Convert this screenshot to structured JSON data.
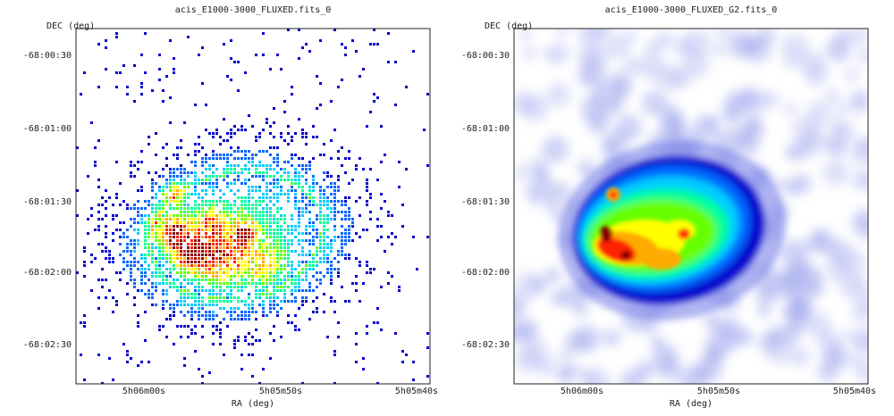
{
  "panels": [
    {
      "title": "acis_E1000-3000_FLUXED.fits_0",
      "y_axis_label": "DEC (deg)",
      "x_axis_label": "RA (deg)",
      "y_ticks": [
        "-68:00:30",
        "-68:01:00",
        "-68:01:30",
        "-68:02:00",
        "-68:02:30"
      ],
      "x_ticks": [
        "5h06m00s",
        "5h05m50s",
        "5h05m40s"
      ],
      "render_style": "binned-counts"
    },
    {
      "title": "acis_E1000-3000_FLUXED_G2.fits_0",
      "y_axis_label": "DEC (deg)",
      "x_axis_label": "RA (deg)",
      "y_ticks": [
        "-68:00:30",
        "-68:01:00",
        "-68:01:30",
        "-68:02:00",
        "-68:02:30"
      ],
      "x_ticks": [
        "5h06m00s",
        "5h05m50s",
        "5h05m40s"
      ],
      "render_style": "gaussian-smoothed"
    }
  ],
  "colormap": [
    "#0000cc",
    "#0066ff",
    "#00ccff",
    "#00ff99",
    "#66ff00",
    "#ffff00",
    "#ffaa00",
    "#ff2200",
    "#880000"
  ],
  "background_haze_color": "#aab0ee"
}
